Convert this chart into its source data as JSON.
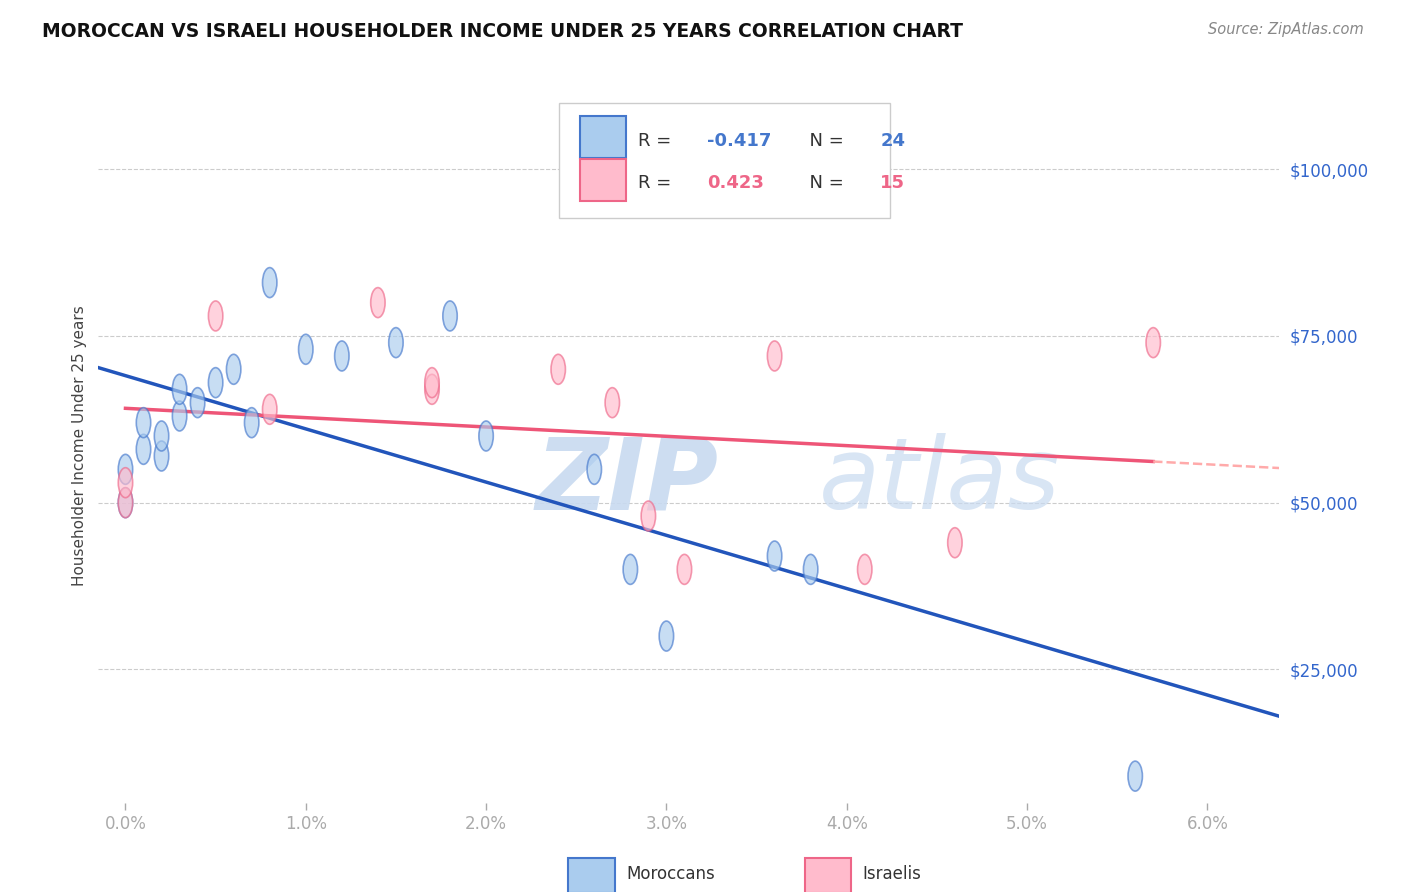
{
  "title": "MOROCCAN VS ISRAELI HOUSEHOLDER INCOME UNDER 25 YEARS CORRELATION CHART",
  "source": "Source: ZipAtlas.com",
  "ylabel": "Householder Income Under 25 years",
  "xlabel_ticks": [
    "0.0%",
    "1.0%",
    "2.0%",
    "3.0%",
    "4.0%",
    "5.0%",
    "6.0%"
  ],
  "xlabel_vals": [
    0.0,
    0.01,
    0.02,
    0.03,
    0.04,
    0.05,
    0.06
  ],
  "ylabel_ticks": [
    "$25,000",
    "$50,000",
    "$75,000",
    "$100,000"
  ],
  "ylabel_vals": [
    25000,
    50000,
    75000,
    100000
  ],
  "xlim": [
    -0.0015,
    0.064
  ],
  "ylim": [
    5000,
    112000
  ],
  "moroccan_x": [
    0.0,
    0.0,
    0.001,
    0.001,
    0.002,
    0.002,
    0.003,
    0.003,
    0.004,
    0.005,
    0.006,
    0.007,
    0.008,
    0.01,
    0.012,
    0.015,
    0.018,
    0.02,
    0.026,
    0.028,
    0.03,
    0.036,
    0.038,
    0.056
  ],
  "moroccan_y": [
    50000,
    55000,
    58000,
    62000,
    57000,
    60000,
    63000,
    67000,
    65000,
    68000,
    70000,
    62000,
    83000,
    73000,
    72000,
    74000,
    78000,
    60000,
    55000,
    40000,
    30000,
    42000,
    40000,
    9000
  ],
  "israeli_x": [
    0.0,
    0.0,
    0.005,
    0.008,
    0.014,
    0.017,
    0.017,
    0.024,
    0.027,
    0.029,
    0.031,
    0.036,
    0.041,
    0.046,
    0.057
  ],
  "israeli_y": [
    50000,
    53000,
    78000,
    64000,
    80000,
    67000,
    68000,
    70000,
    65000,
    48000,
    40000,
    72000,
    40000,
    44000,
    74000
  ],
  "moroccan_R": -0.417,
  "moroccan_N": 24,
  "israeli_R": 0.423,
  "israeli_N": 15,
  "moroccan_color": "#aaccee",
  "israeli_color": "#ffbbcc",
  "moroccan_edge_color": "#4477cc",
  "israeli_edge_color": "#ee6688",
  "moroccan_line_color": "#2255bb",
  "israeli_line_color": "#ee5577",
  "israeli_dashed_color": "#ffaaaa",
  "watermark_color": "#cce0f5",
  "background_color": "#ffffff",
  "grid_color": "#cccccc",
  "legend_moroccan": "Moroccans",
  "legend_israeli": "Israelis"
}
